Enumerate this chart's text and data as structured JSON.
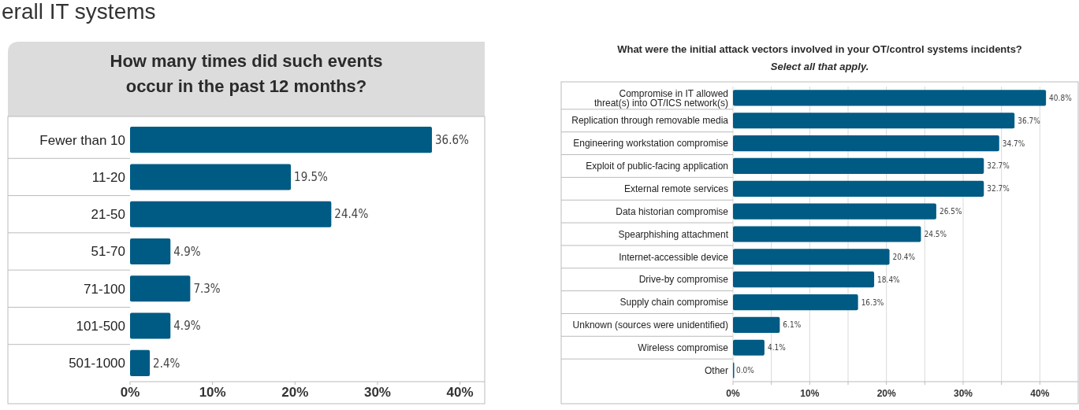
{
  "chart_data": [
    {
      "type": "bar",
      "orientation": "horizontal",
      "title": "How many times did such events occur in the past 12 months?",
      "annotations": [
        "erall IT systems"
      ],
      "categories": [
        "Fewer than 10",
        "11-20",
        "21-50",
        "51-70",
        "71-100",
        "101-500",
        "501-1000"
      ],
      "values": [
        36.6,
        19.5,
        24.4,
        4.9,
        7.3,
        4.9,
        2.4
      ],
      "value_labels": [
        "36.6%",
        "19.5%",
        "24.4%",
        "4.9%",
        "7.3%",
        "4.9%",
        "2.4%"
      ],
      "color": "#005b84",
      "xlim": [
        0,
        43
      ],
      "xticks": [
        {
          "value": 0,
          "label": "0%"
        },
        {
          "value": 10,
          "label": "10%"
        },
        {
          "value": 20,
          "label": "20%"
        },
        {
          "value": 30,
          "label": "30%"
        },
        {
          "value": 40,
          "label": "40%"
        }
      ],
      "grid": false
    },
    {
      "type": "bar",
      "orientation": "horizontal",
      "title": "What were the initial attack vectors involved in your OT/control systems incidents?",
      "subtitle": "Select all that apply.",
      "categories": [
        "Compromise in IT allowed threat(s) into OT/ICS network(s)",
        "Replication through removable media",
        "Engineering workstation compromise",
        "Exploit of public-facing application",
        "External remote services",
        "Data historian compromise",
        "Spearphishing attachment",
        "Internet-accessible device",
        "Drive-by compromise",
        "Supply chain compromise",
        "Unknown (sources were unidentified)",
        "Wireless compromise",
        "Other"
      ],
      "values": [
        40.8,
        36.7,
        34.7,
        32.7,
        32.7,
        26.5,
        24.5,
        20.4,
        18.4,
        16.3,
        6.1,
        4.1,
        0.0
      ],
      "value_labels": [
        "40.8%",
        "36.7%",
        "34.7%",
        "32.7%",
        "32.7%",
        "26.5%",
        "24.5%",
        "20.4%",
        "18.4%",
        "16.3%",
        "6.1%",
        "4.1%",
        "0.0%"
      ],
      "color": "#005b84",
      "xlim": [
        0,
        45
      ],
      "xticks": [
        {
          "value": 0,
          "label": "0%"
        },
        {
          "value": 5,
          "label": null
        },
        {
          "value": 10,
          "label": "10%"
        },
        {
          "value": 15,
          "label": null
        },
        {
          "value": 20,
          "label": "20%"
        },
        {
          "value": 25,
          "label": null
        },
        {
          "value": 30,
          "label": "30%"
        },
        {
          "value": 35,
          "label": null
        },
        {
          "value": 40,
          "label": "40%"
        }
      ],
      "grid": "x"
    }
  ]
}
